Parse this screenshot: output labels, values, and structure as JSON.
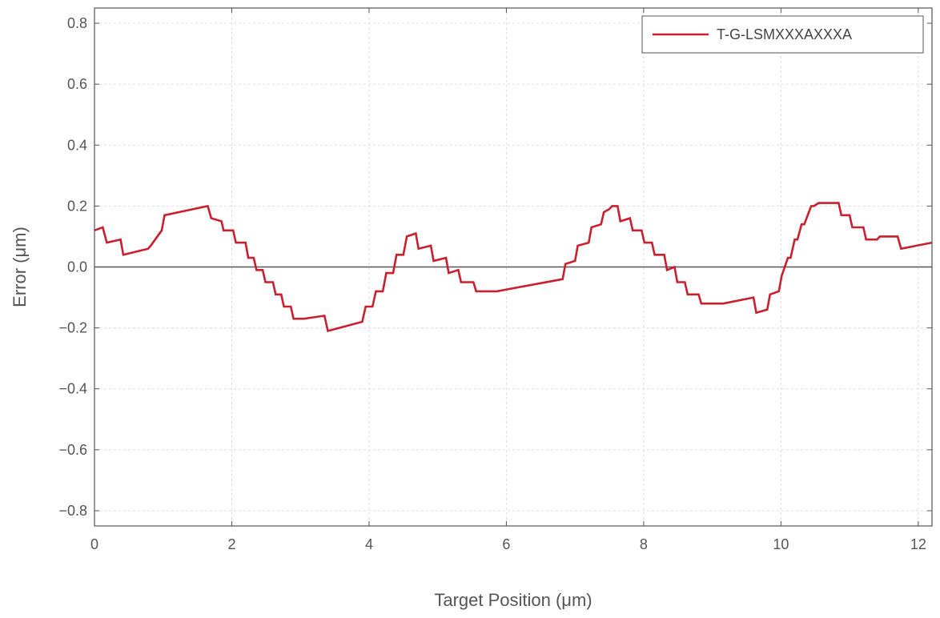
{
  "chart_data": {
    "type": "line",
    "title": "",
    "xlabel": "Target Position (μm)",
    "ylabel": "Error (μm)",
    "xlim": [
      0,
      12.2
    ],
    "ylim": [
      -0.85,
      0.85
    ],
    "xticks": [
      0,
      2,
      4,
      6,
      8,
      10,
      12
    ],
    "xtick_labels": [
      "0",
      "2",
      "4",
      "6",
      "8",
      "10",
      "12"
    ],
    "yticks": [
      -0.8,
      -0.6,
      -0.4,
      -0.2,
      0.0,
      0.2,
      0.4,
      0.6,
      0.8
    ],
    "ytick_labels": [
      "−0.8",
      "−0.6",
      "−0.4",
      "−0.2",
      "0.0",
      "0.2",
      "0.4",
      "0.6",
      "0.8"
    ],
    "grid": true,
    "legend": "top-right",
    "baseline_y": 0.0,
    "colors": {
      "series": "#c8202e",
      "baseline": "#555555",
      "grid": "#dddddd",
      "frame": "#555555"
    },
    "series": [
      {
        "name": "T-G-LSMXXXAXXXA",
        "x": [
          0,
          0.12,
          0.18,
          0.38,
          0.42,
          0.78,
          0.82,
          0.98,
          1.02,
          1.65,
          1.7,
          1.85,
          1.88,
          2.02,
          2.06,
          2.2,
          2.24,
          2.32,
          2.36,
          2.45,
          2.49,
          2.6,
          2.64,
          2.72,
          2.76,
          2.86,
          2.9,
          3.0,
          3.05,
          3.35,
          3.4,
          3.9,
          3.95,
          4.05,
          4.1,
          4.2,
          4.25,
          4.35,
          4.4,
          4.5,
          4.55,
          4.68,
          4.72,
          4.9,
          4.94,
          5.12,
          5.16,
          5.3,
          5.34,
          5.52,
          5.56,
          5.82,
          5.86,
          6.82,
          6.86,
          7.0,
          7.04,
          7.2,
          7.24,
          7.38,
          7.42,
          7.5,
          7.54,
          7.62,
          7.66,
          7.8,
          7.84,
          7.97,
          8.01,
          8.12,
          8.16,
          8.3,
          8.34,
          8.45,
          8.49,
          8.6,
          8.64,
          8.8,
          8.84,
          9.0,
          9.04,
          9.12,
          9.16,
          9.6,
          9.64,
          9.8,
          9.84,
          9.97,
          10.01,
          10.1,
          10.14,
          10.2,
          10.24,
          10.3,
          10.34,
          10.44,
          10.48,
          10.55,
          10.59,
          10.84,
          10.88,
          11.0,
          11.04,
          11.2,
          11.24,
          11.4,
          11.44,
          11.7,
          11.75,
          12.2
        ],
        "y": [
          0.12,
          0.13,
          0.08,
          0.09,
          0.04,
          0.06,
          0.07,
          0.12,
          0.17,
          0.2,
          0.16,
          0.15,
          0.12,
          0.12,
          0.08,
          0.08,
          0.03,
          0.03,
          -0.01,
          -0.01,
          -0.05,
          -0.05,
          -0.09,
          -0.09,
          -0.13,
          -0.13,
          -0.17,
          -0.17,
          -0.17,
          -0.16,
          -0.21,
          -0.18,
          -0.13,
          -0.13,
          -0.08,
          -0.08,
          -0.02,
          -0.02,
          0.04,
          0.04,
          0.1,
          0.11,
          0.06,
          0.07,
          0.02,
          0.03,
          -0.02,
          -0.01,
          -0.05,
          -0.05,
          -0.08,
          -0.08,
          -0.08,
          -0.04,
          0.01,
          0.02,
          0.07,
          0.08,
          0.13,
          0.14,
          0.18,
          0.19,
          0.2,
          0.2,
          0.15,
          0.16,
          0.12,
          0.12,
          0.08,
          0.08,
          0.04,
          0.04,
          -0.01,
          0.0,
          -0.05,
          -0.05,
          -0.09,
          -0.09,
          -0.12,
          -0.12,
          -0.12,
          -0.12,
          -0.12,
          -0.1,
          -0.15,
          -0.14,
          -0.09,
          -0.08,
          -0.03,
          0.03,
          0.03,
          0.09,
          0.09,
          0.14,
          0.14,
          0.2,
          0.2,
          0.21,
          0.21,
          0.21,
          0.17,
          0.17,
          0.13,
          0.13,
          0.09,
          0.09,
          0.1,
          0.1,
          0.06,
          0.08
        ]
      }
    ]
  }
}
